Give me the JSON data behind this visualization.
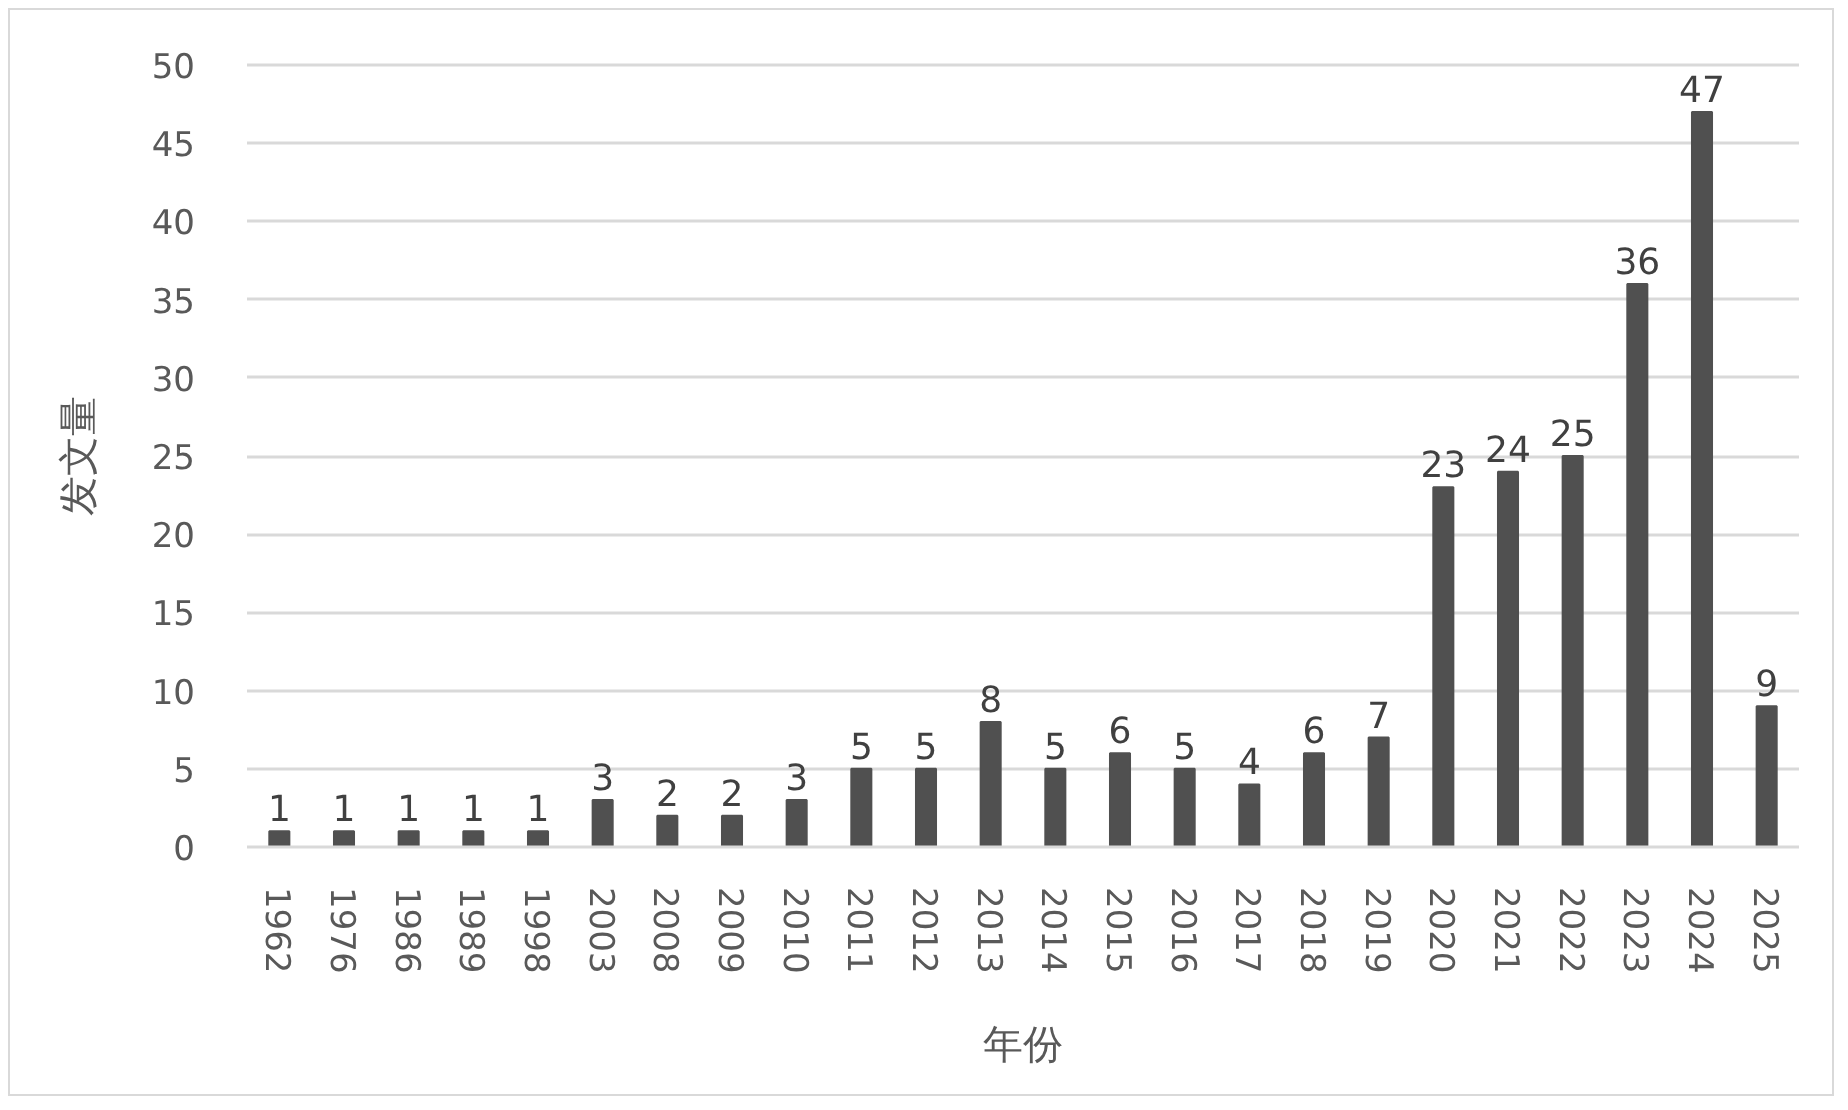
{
  "chart_data": {
    "type": "bar",
    "xlabel": "年份",
    "ylabel": "发文量",
    "categories": [
      "1962",
      "1976",
      "1986",
      "1989",
      "1998",
      "2003",
      "2008",
      "2009",
      "2010",
      "2011",
      "2012",
      "2013",
      "2014",
      "2015",
      "2016",
      "2017",
      "2018",
      "2019",
      "2020",
      "2021",
      "2022",
      "2023",
      "2024",
      "2025"
    ],
    "values": [
      1,
      1,
      1,
      1,
      1,
      3,
      2,
      2,
      3,
      5,
      5,
      8,
      5,
      6,
      5,
      4,
      6,
      7,
      23,
      24,
      25,
      36,
      47,
      9
    ],
    "color": "#505050",
    "ylim": [
      0,
      50
    ],
    "yticks": [
      0,
      5,
      10,
      15,
      20,
      25,
      30,
      35,
      40,
      45,
      50
    ],
    "grid": "y",
    "data_labels": true
  }
}
